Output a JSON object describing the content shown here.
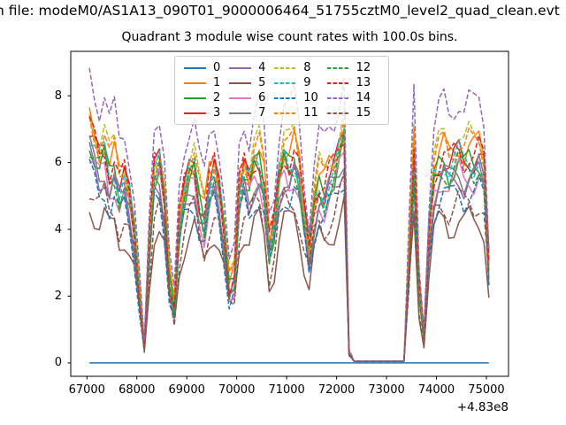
{
  "figure": {
    "suptitle": "n file: modeM0/AS1A13_090T01_9000006464_51755cztM0_level2_quad_clean.evt",
    "axes_title": "Quadrant 3 module wise count rates with 100.0s bins."
  },
  "chart_data": {
    "type": "line",
    "title": "Quadrant 3 module wise count rates with 100.0s bins.",
    "xlabel": "",
    "ylabel": "",
    "x_offset_text": "+4.83e8",
    "xticks": [
      67000,
      68000,
      69000,
      70000,
      71000,
      72000,
      73000,
      74000,
      75000
    ],
    "xtick_labels": [
      "67000",
      "68000",
      "69000",
      "70000",
      "71000",
      "72000",
      "73000",
      "74000",
      "75000"
    ],
    "yticks": [
      0,
      2,
      4,
      6,
      8
    ],
    "ytick_labels": [
      "0",
      "2",
      "4",
      "6",
      "8"
    ],
    "xlim": [
      66676,
      75443
    ],
    "ylim": [
      -0.4,
      9.33
    ],
    "grid": false,
    "legend_position": "upper center",
    "legend_columns": 4,
    "x_start": 67050,
    "x_step": 100,
    "wiggle_amp": 0.45,
    "mean_rate": [
      6.7,
      6.3,
      5.9,
      6.2,
      5.5,
      5.8,
      5.1,
      5.4,
      4.8,
      3.8,
      2.0,
      0.45,
      3.4,
      5.6,
      5.8,
      4.8,
      2.4,
      1.6,
      4.0,
      5.0,
      5.5,
      5.7,
      4.7,
      4.2,
      5.2,
      5.6,
      5.0,
      3.8,
      2.2,
      2.5,
      5.0,
      5.6,
      5.2,
      5.8,
      5.9,
      5.2,
      3.4,
      4.0,
      5.4,
      6.0,
      5.8,
      6.1,
      5.5,
      4.3,
      3.3,
      4.6,
      5.2,
      5.0,
      5.4,
      5.6,
      6.1,
      6.6,
      0.3,
      0.05,
      0.05,
      0.05,
      0.05,
      0.05,
      0.05,
      0.05,
      0.05,
      0.05,
      0.05,
      0.05,
      3.0,
      6.1,
      2.2,
      0.8,
      3.8,
      5.4,
      5.8,
      6.0,
      5.7,
      5.9,
      6.1,
      5.8,
      6.0,
      5.9,
      6.1,
      5.7,
      2.9
    ],
    "series": [
      {
        "name": "0",
        "color": "#1f77b4",
        "dashed": false,
        "scale": 0.0
      },
      {
        "name": "1",
        "color": "#ff7f0e",
        "dashed": false,
        "scale": 1.08
      },
      {
        "name": "2",
        "color": "#2ca02c",
        "dashed": false,
        "scale": 1.0
      },
      {
        "name": "3",
        "color": "#d62728",
        "dashed": false,
        "scale": 1.03
      },
      {
        "name": "4",
        "color": "#9467bd",
        "dashed": false,
        "scale": 0.92
      },
      {
        "name": "5",
        "color": "#8c564b",
        "dashed": false,
        "scale": 0.71
      },
      {
        "name": "6",
        "color": "#e377c2",
        "dashed": false,
        "scale": 0.93
      },
      {
        "name": "7",
        "color": "#7f7f7f",
        "dashed": false,
        "scale": 0.95
      },
      {
        "name": "8",
        "color": "#bcbd22",
        "dashed": true,
        "scale": 1.13
      },
      {
        "name": "9",
        "color": "#17becf",
        "dashed": true,
        "scale": 1.02
      },
      {
        "name": "10",
        "color": "#1f77b4",
        "dashed": true,
        "scale": 0.85
      },
      {
        "name": "11",
        "color": "#ff7f0e",
        "dashed": true,
        "scale": 1.1
      },
      {
        "name": "12",
        "color": "#2ca02c",
        "dashed": true,
        "scale": 0.98
      },
      {
        "name": "13",
        "color": "#d62728",
        "dashed": true,
        "scale": 1.05
      },
      {
        "name": "14",
        "color": "#9467bd",
        "dashed": true,
        "scale": 1.3
      },
      {
        "name": "15",
        "color": "#8c564b",
        "dashed": true,
        "scale": 0.8
      }
    ]
  }
}
